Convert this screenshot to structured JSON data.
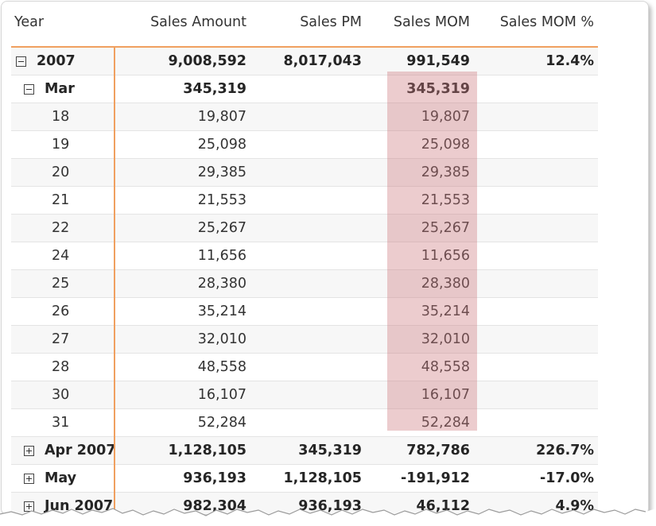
{
  "columns": [
    "Year",
    "Sales Amount",
    "Sales PM",
    "Sales MOM",
    "Sales MOM %"
  ],
  "rows": [
    {
      "label": "2007",
      "sales": "9,008,592",
      "pm": "8,017,043",
      "mom": "991,549",
      "momp": "12.4%",
      "level": 0,
      "toggle": "minus"
    },
    {
      "label": "Mar",
      "sales": "345,319",
      "pm": "",
      "mom": "345,319",
      "momp": "",
      "level": 1,
      "toggle": "minus"
    },
    {
      "label": "18",
      "sales": "19,807",
      "pm": "",
      "mom": "19,807",
      "momp": "",
      "level": 2
    },
    {
      "label": "19",
      "sales": "25,098",
      "pm": "",
      "mom": "25,098",
      "momp": "",
      "level": 2
    },
    {
      "label": "20",
      "sales": "29,385",
      "pm": "",
      "mom": "29,385",
      "momp": "",
      "level": 2
    },
    {
      "label": "21",
      "sales": "21,553",
      "pm": "",
      "mom": "21,553",
      "momp": "",
      "level": 2
    },
    {
      "label": "22",
      "sales": "25,267",
      "pm": "",
      "mom": "25,267",
      "momp": "",
      "level": 2
    },
    {
      "label": "24",
      "sales": "11,656",
      "pm": "",
      "mom": "11,656",
      "momp": "",
      "level": 2
    },
    {
      "label": "25",
      "sales": "28,380",
      "pm": "",
      "mom": "28,380",
      "momp": "",
      "level": 2
    },
    {
      "label": "26",
      "sales": "35,214",
      "pm": "",
      "mom": "35,214",
      "momp": "",
      "level": 2
    },
    {
      "label": "27",
      "sales": "32,010",
      "pm": "",
      "mom": "32,010",
      "momp": "",
      "level": 2
    },
    {
      "label": "28",
      "sales": "48,558",
      "pm": "",
      "mom": "48,558",
      "momp": "",
      "level": 2
    },
    {
      "label": "30",
      "sales": "16,107",
      "pm": "",
      "mom": "16,107",
      "momp": "",
      "level": 2
    },
    {
      "label": "31",
      "sales": "52,284",
      "pm": "",
      "mom": "52,284",
      "momp": "",
      "level": 2
    },
    {
      "label": "Apr 2007",
      "sales": "1,128,105",
      "pm": "345,319",
      "mom": "782,786",
      "momp": "226.7%",
      "level": 1,
      "toggle": "plus"
    },
    {
      "label": "May",
      "sales": "936,193",
      "pm": "1,128,105",
      "mom": "-191,912",
      "momp": "-17.0%",
      "level": 1,
      "toggle": "plus"
    },
    {
      "label": "Jun 2007",
      "sales": "982,304",
      "pm": "936,193",
      "mom": "46,112",
      "momp": "4.9%",
      "level": 1,
      "toggle": "plus"
    }
  ],
  "colors": {
    "accent": "#f0a060",
    "highlight": "#cd787d",
    "text": "#333333"
  }
}
